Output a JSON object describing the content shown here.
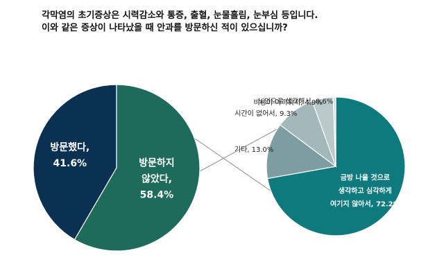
{
  "title_lines": [
    "각막염의 초기증상은 시력감소와 통증, 출혈, 눈물흘림, 눈부심 등입니다.",
    "이와 같은 증상이 나타났을 때 안과를 방문하신 적이 있으십니까?"
  ],
  "chart_data": [
    {
      "type": "pie",
      "categories": [
        "방문했다",
        "방문하지 않았다"
      ],
      "values": [
        41.6,
        58.4
      ],
      "labels": [
        {
          "lines": [
            "방문했다,",
            "41.6%"
          ]
        },
        {
          "lines": [
            "방문하지",
            "않았다,",
            "58.4%"
          ]
        }
      ],
      "colors": [
        "#0b3152",
        "#1e6a5b"
      ]
    },
    {
      "type": "pie",
      "title": "",
      "categories": [
        "금방 나을 것으로 생각하고 심각하게 여기지 않아서",
        "기타",
        "시간이 없어서",
        "비용이 아까워서",
        "노안으로 생각해서"
      ],
      "values": [
        72.2,
        13.0,
        9.3,
        4.9,
        0.6
      ],
      "labels": [
        {
          "lines": [
            "금방 나을 것으로",
            "생각하고 심각하게",
            "여기지 않아서, 72.2%"
          ]
        },
        {
          "lines": [
            "기타, 13.0%"
          ]
        },
        {
          "lines": [
            "시간이 없어서, 9.3%"
          ]
        },
        {
          "lines": [
            "비용이 아까워서, 4.9%"
          ]
        },
        {
          "lines": [
            "노안으로 생각해서, 0.6%"
          ]
        }
      ],
      "colors": [
        "#0e7a7e",
        "#7e9da3",
        "#a4b8bc",
        "#b9c9cc",
        "#d4dfe1"
      ]
    }
  ]
}
